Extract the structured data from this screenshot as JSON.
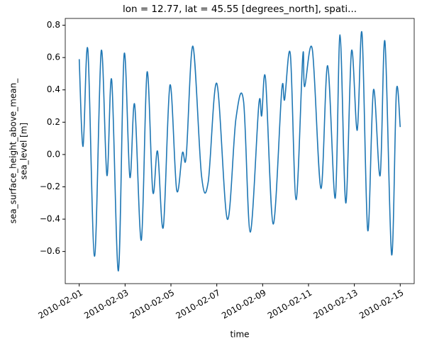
{
  "chart_data": {
    "type": "line",
    "title": "lon = 12.77, lat = 45.55 [degrees_north], spati...",
    "xlabel": "time",
    "ylabel": [
      "sea_surface_height_above_mean_",
      "sea_level [m]"
    ],
    "x": [
      "2010-02-01T00:00",
      "2010-02-01T04:00",
      "2010-02-01T09:00",
      "2010-02-01T16:00",
      "2010-02-01T23:00",
      "2010-02-02T05:00",
      "2010-02-02T10:00",
      "2010-02-02T17:00",
      "2010-02-02T23:00",
      "2010-02-03T05:00",
      "2010-02-03T10:00",
      "2010-02-03T17:00",
      "2010-02-03T23:00",
      "2010-02-04T05:00",
      "2010-02-04T10:00",
      "2010-02-04T16:00",
      "2010-02-04T23:00",
      "2010-02-05T06:00",
      "2010-02-05T12:00",
      "2010-02-05T16:00",
      "2010-02-05T23:00",
      "2010-02-06T08:00",
      "2010-02-06T15:00",
      "2010-02-07T00:00",
      "2010-02-07T11:00",
      "2010-02-07T20:00",
      "2010-02-08T04:00",
      "2010-02-08T11:00",
      "2010-02-08T20:00",
      "2010-02-08T23:00",
      "2010-02-09T03:00",
      "2010-02-09T11:00",
      "2010-02-09T20:00",
      "2010-02-09T23:00",
      "2010-02-10T05:00",
      "2010-02-10T11:00",
      "2010-02-10T18:00",
      "2010-02-10T20:00",
      "2010-02-11T04:00",
      "2010-02-11T13:00",
      "2010-02-11T20:00",
      "2010-02-12T04:00",
      "2010-02-12T09:00",
      "2010-02-12T15:00",
      "2010-02-12T21:00",
      "2010-02-13T03:00",
      "2010-02-13T08:00",
      "2010-02-13T14:00",
      "2010-02-13T20:00",
      "2010-02-14T03:00",
      "2010-02-14T08:00",
      "2010-02-14T15:00",
      "2010-02-14T20:00",
      "2010-02-15T00:00"
    ],
    "series": [
      {
        "name": "sea_surface_height_above_mean_sea_level",
        "color": "#1f77b4",
        "values": [
          0.59,
          0.05,
          0.65,
          -0.63,
          0.64,
          -0.13,
          0.46,
          -0.72,
          0.62,
          -0.14,
          0.31,
          -0.53,
          0.51,
          -0.23,
          0.02,
          -0.45,
          0.43,
          -0.22,
          0.01,
          -0.01,
          0.67,
          -0.13,
          -0.17,
          0.44,
          -0.4,
          0.22,
          0.33,
          -0.48,
          0.31,
          0.24,
          0.47,
          -0.43,
          0.4,
          0.34,
          0.62,
          -0.28,
          0.61,
          0.42,
          0.65,
          -0.21,
          0.55,
          -0.27,
          0.74,
          -0.3,
          0.64,
          0.15,
          0.75,
          -0.47,
          0.4,
          -0.13,
          0.7,
          -0.62,
          0.39,
          0.17
        ]
      }
    ],
    "xlim": [
      "2010-01-31T09:22",
      "2010-02-15T14:38"
    ],
    "xticks": [
      "2010-02-01",
      "2010-02-03",
      "2010-02-05",
      "2010-02-07",
      "2010-02-09",
      "2010-02-11",
      "2010-02-13",
      "2010-02-15"
    ],
    "ylim": [
      -0.799,
      0.842
    ],
    "yticks": [
      {
        "value": -0.6,
        "label": "−0.6"
      },
      {
        "value": -0.4,
        "label": "−0.4"
      },
      {
        "value": -0.2,
        "label": "−0.2"
      },
      {
        "value": 0,
        "label": "0.0"
      },
      {
        "value": 0.2,
        "label": "0.2"
      },
      {
        "value": 0.4,
        "label": "0.4"
      },
      {
        "value": 0.6,
        "label": "0.6"
      },
      {
        "value": 0.8,
        "label": "0.8"
      }
    ],
    "grid": false
  }
}
